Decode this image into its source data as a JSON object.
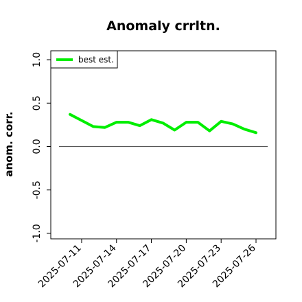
{
  "chart_data": {
    "type": "line",
    "title": "Anomaly crrltn.",
    "xlabel": "",
    "ylabel": "anom. corr.",
    "ylim": [
      -1.0,
      1.0
    ],
    "yticks": [
      "-1.0",
      "-0.5",
      "0.0",
      "0.5",
      "1.0"
    ],
    "x": [
      "2025-07-10",
      "2025-07-11",
      "2025-07-12",
      "2025-07-13",
      "2025-07-14",
      "2025-07-15",
      "2025-07-16",
      "2025-07-17",
      "2025-07-18",
      "2025-07-19",
      "2025-07-20",
      "2025-07-21",
      "2025-07-22",
      "2025-07-23",
      "2025-07-24",
      "2025-07-25",
      "2025-07-26"
    ],
    "xtick_labels": [
      "2025-07-11",
      "2025-07-14",
      "2025-07-17",
      "2025-07-20",
      "2025-07-23",
      "2025-07-26"
    ],
    "series": [
      {
        "name": "best est.",
        "color": "#00ee00",
        "values": [
          0.37,
          0.3,
          0.23,
          0.22,
          0.28,
          0.28,
          0.24,
          0.31,
          0.27,
          0.19,
          0.28,
          0.28,
          0.18,
          0.29,
          0.26,
          0.2,
          0.16
        ]
      }
    ],
    "reference_line": {
      "y": 0.0,
      "color": "#555555"
    },
    "grid": false,
    "legend": "top-left"
  }
}
